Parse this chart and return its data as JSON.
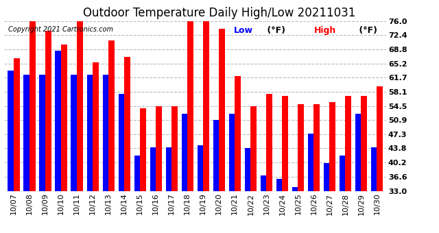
{
  "title": "Outdoor Temperature Daily High/Low 20211031",
  "copyright": "Copyright 2021 Cartronics.com",
  "dates": [
    "10/07",
    "10/08",
    "10/09",
    "10/10",
    "10/11",
    "10/12",
    "10/13",
    "10/14",
    "10/15",
    "10/16",
    "10/17",
    "10/18",
    "10/19",
    "10/20",
    "10/21",
    "10/22",
    "10/23",
    "10/24",
    "10/25",
    "10/26",
    "10/27",
    "10/28",
    "10/29",
    "10/30"
  ],
  "high": [
    66.5,
    77.0,
    73.5,
    70.0,
    76.5,
    65.5,
    71.0,
    67.0,
    54.0,
    54.5,
    54.5,
    76.5,
    76.5,
    74.0,
    62.0,
    54.5,
    57.5,
    57.0,
    55.0,
    55.0,
    55.5,
    57.0,
    57.0,
    59.5
  ],
  "low": [
    63.5,
    62.5,
    62.5,
    68.5,
    62.5,
    62.5,
    62.5,
    57.5,
    42.0,
    44.0,
    44.0,
    52.5,
    44.5,
    51.0,
    52.5,
    43.8,
    37.0,
    36.0,
    34.0,
    47.5,
    40.0,
    42.0,
    52.5,
    44.0
  ],
  "ylim_min": 33.0,
  "ylim_max": 76.0,
  "yticks": [
    33.0,
    36.6,
    40.2,
    43.8,
    47.3,
    50.9,
    54.5,
    58.1,
    61.7,
    65.2,
    68.8,
    72.4,
    76.0
  ],
  "bar_width": 0.38,
  "high_color": "#ff0000",
  "low_color": "#0000ff",
  "bg_color": "#ffffff",
  "title_fontsize": 12,
  "tick_fontsize": 8,
  "legend_fontsize": 9,
  "copyright_fontsize": 7
}
